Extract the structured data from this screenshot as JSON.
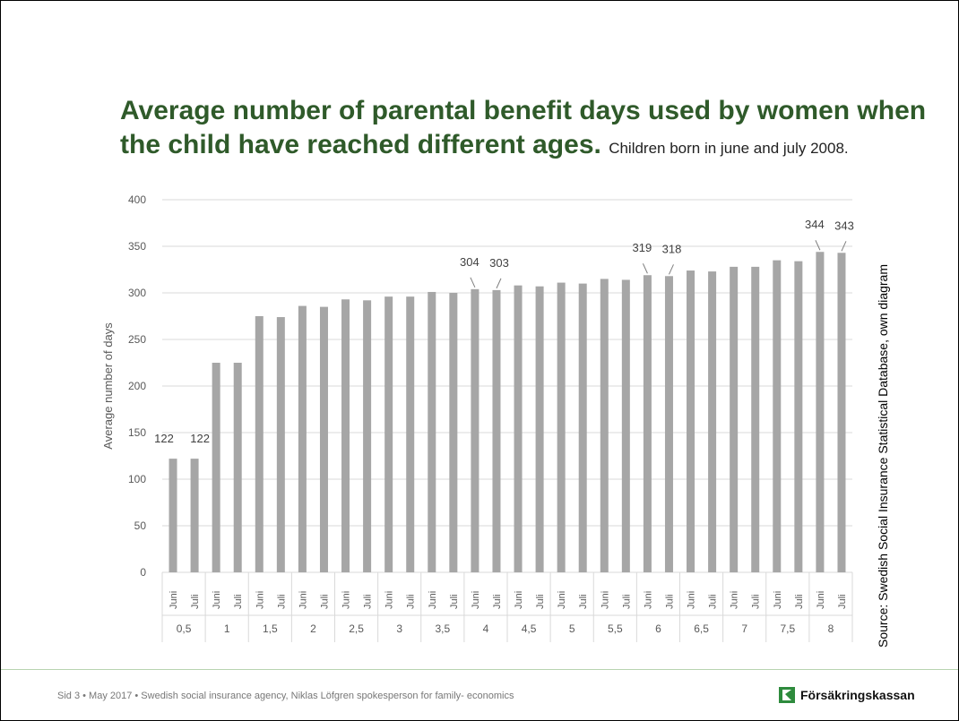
{
  "slide": {
    "title": "Average number of parental benefit days used by women when the child have reached different ages.",
    "subtitle": "Children born in june and july 2008.",
    "source": "Source: Swedish Social Insurance Statistical Database, own diagram",
    "footer": "Sid 3 • May 2017 • Swedish social insurance agency, Niklas Löfgren spokesperson for family- economics",
    "logo_text": "Försäkringskassan"
  },
  "colors": {
    "title": "#2f5a2a",
    "bar": "#a6a6a6",
    "grid": "#d9d9d9",
    "logo_green": "#2e8b3d"
  },
  "chart_data": {
    "type": "bar",
    "ylabel": "Average number of days",
    "ylim": [
      0,
      400
    ],
    "yticks": [
      0,
      50,
      100,
      150,
      200,
      250,
      300,
      350,
      400
    ],
    "grid": true,
    "groups": [
      "0,5",
      "1",
      "1,5",
      "2",
      "2,5",
      "3",
      "3,5",
      "4",
      "4,5",
      "5",
      "5,5",
      "6",
      "6,5",
      "7",
      "7,5",
      "8"
    ],
    "subcategories": [
      "Juni",
      "Juli"
    ],
    "values": [
      122,
      122,
      225,
      225,
      275,
      274,
      286,
      285,
      293,
      292,
      296,
      296,
      301,
      300,
      304,
      303,
      308,
      307,
      311,
      310,
      315,
      314,
      319,
      318,
      324,
      323,
      328,
      328,
      335,
      334,
      344,
      343
    ],
    "data_labels": {
      "0": "122",
      "1": "122",
      "14": "304",
      "15": "303",
      "22": "319",
      "23": "318",
      "30": "344",
      "31": "343"
    }
  }
}
